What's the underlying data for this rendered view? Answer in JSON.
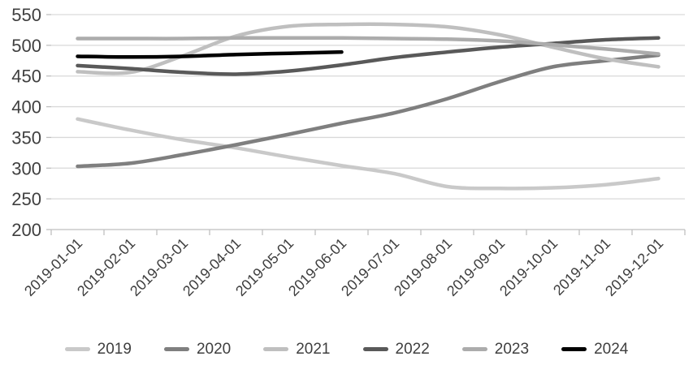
{
  "chart_data": {
    "type": "line",
    "title": "",
    "xlabel": "",
    "ylabel": "",
    "categories": [
      "2019-01-01",
      "2019-02-01",
      "2019-03-01",
      "2019-04-01",
      "2019-05-01",
      "2019-06-01",
      "2019-07-01",
      "2019-08-01",
      "2019-09-01",
      "2019-10-01",
      "2019-11-01",
      "2019-12-01"
    ],
    "series": [
      {
        "name": "2019",
        "color": "#c9c9c9",
        "values": [
          380,
          362,
          346,
          333,
          318,
          304,
          291,
          270,
          267,
          268,
          273,
          283
        ]
      },
      {
        "name": "2020",
        "color": "#7f7f7f",
        "values": [
          303,
          308,
          322,
          338,
          355,
          373,
          390,
          413,
          441,
          465,
          475,
          484
        ]
      },
      {
        "name": "2021",
        "color": "#bfbfbf",
        "values": [
          457,
          456,
          483,
          515,
          531,
          534,
          534,
          530,
          517,
          497,
          478,
          465
        ]
      },
      {
        "name": "2022",
        "color": "#595959",
        "values": [
          467,
          462,
          456,
          453,
          458,
          468,
          480,
          489,
          497,
          503,
          509,
          512
        ]
      },
      {
        "name": "2023",
        "color": "#acacac",
        "values": [
          511,
          511,
          511,
          512,
          512,
          512,
          511,
          510,
          507,
          501,
          494,
          486
        ]
      },
      {
        "name": "2024",
        "color": "#000000",
        "values": [
          482,
          481,
          482,
          485,
          487,
          489,
          null,
          null,
          null,
          null,
          null,
          null
        ]
      }
    ],
    "yticks": [
      200,
      250,
      300,
      350,
      400,
      450,
      500,
      550
    ],
    "ylim": [
      200,
      550
    ],
    "grid": "horizontal",
    "legend_position": "bottom",
    "x_label_rotation_deg": -45
  },
  "colors": {
    "background": "#ffffff",
    "gridline": "#d9d9d9",
    "axis_line": "#bfbfbf",
    "tick_mark": "#bfbfbf",
    "tick_label": "#3f3f3f"
  }
}
